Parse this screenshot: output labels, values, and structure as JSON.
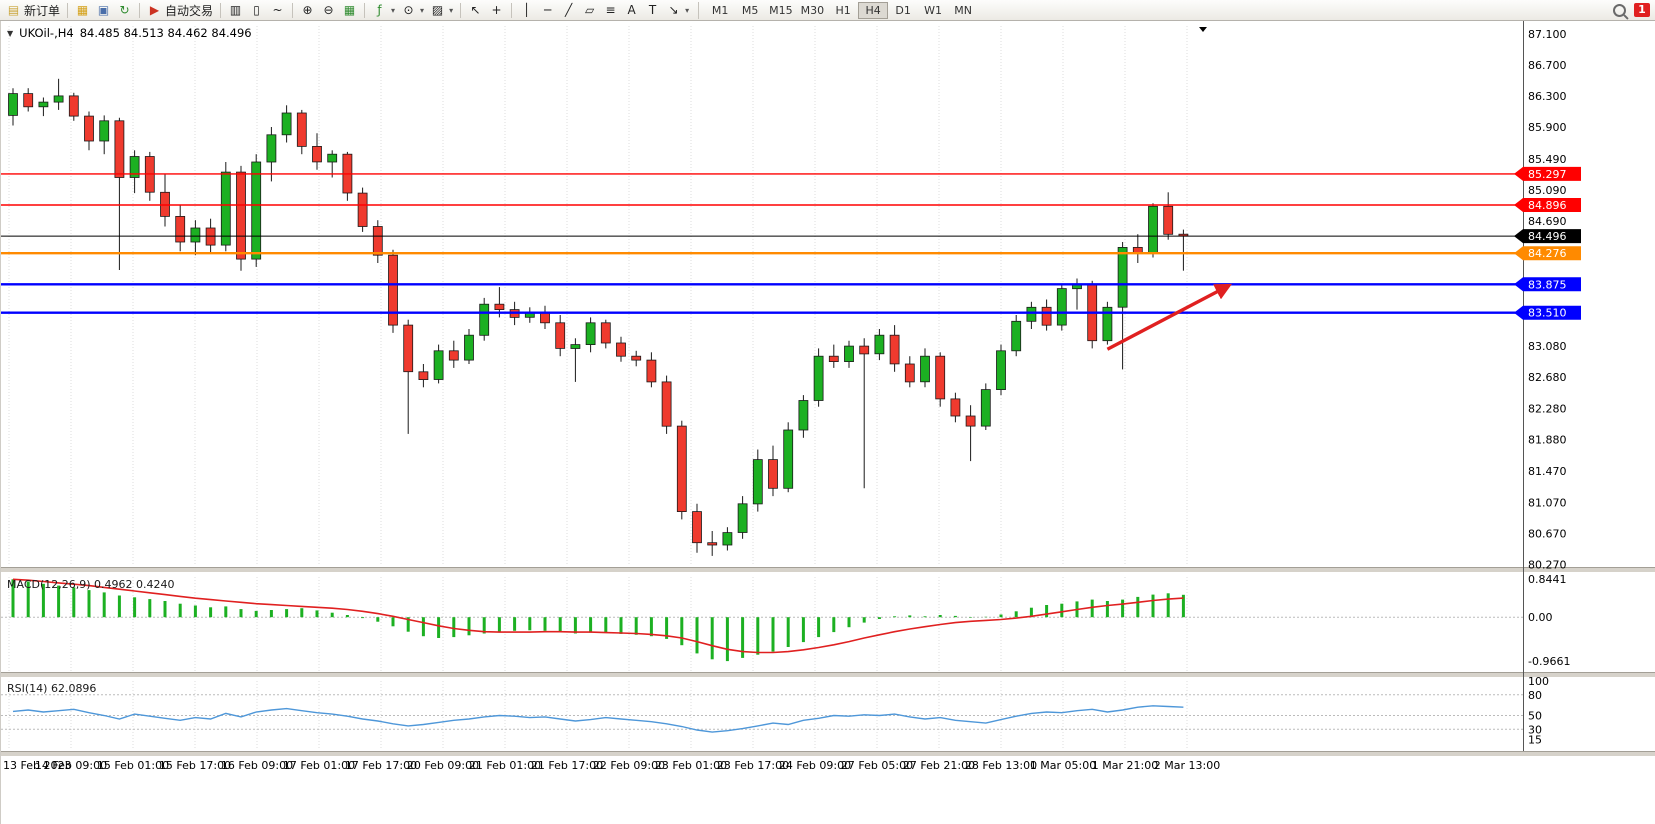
{
  "toolbar": {
    "badge_count": "1",
    "active_timeframe": "H4",
    "timeframes": [
      "M1",
      "M5",
      "M15",
      "M30",
      "H1",
      "H4",
      "D1",
      "W1",
      "MN"
    ],
    "groups": [
      [
        {
          "name": "new-order",
          "glyph": "▤",
          "color": "#caa53a",
          "label": "新订单"
        }
      ],
      [
        {
          "name": "charts-menu",
          "glyph": "▦",
          "color": "#d4a017"
        },
        {
          "name": "profiles",
          "glyph": "▣",
          "color": "#4a6ea9"
        },
        {
          "name": "refresh",
          "glyph": "↻",
          "color": "#2e8b2e"
        }
      ],
      [
        {
          "name": "autotrade",
          "glyph": "▶",
          "color": "#cc3322",
          "label": "自动交易"
        }
      ],
      [
        {
          "name": "bar-chart",
          "glyph": "▥"
        },
        {
          "name": "candlestick-chart",
          "glyph": "▯"
        },
        {
          "name": "line-chart",
          "glyph": "~"
        }
      ],
      [
        {
          "name": "zoom-in",
          "glyph": "⊕"
        },
        {
          "name": "zoom-out",
          "glyph": "⊖"
        },
        {
          "name": "tile-windows",
          "glyph": "▦",
          "color": "#2e8b2e"
        }
      ],
      [
        {
          "name": "indicators",
          "glyph": "ƒ",
          "color": "#2e8b2e",
          "dropdown": true
        },
        {
          "name": "periods",
          "glyph": "⊙",
          "dropdown": true
        },
        {
          "name": "templates",
          "glyph": "▨",
          "dropdown": true
        }
      ],
      [
        {
          "name": "cursor",
          "glyph": "↖"
        },
        {
          "name": "crosshair",
          "glyph": "+"
        }
      ],
      [
        {
          "name": "vertical-line",
          "glyph": "│"
        },
        {
          "name": "horizontal-line",
          "glyph": "─"
        },
        {
          "name": "trendline",
          "glyph": "╱"
        },
        {
          "name": "channel",
          "glyph": "▱"
        },
        {
          "name": "fibonacci",
          "glyph": "≡"
        },
        {
          "name": "text",
          "glyph": "A"
        },
        {
          "name": "text-label",
          "glyph": "T"
        },
        {
          "name": "arrows-tool",
          "glyph": "↘",
          "dropdown": true
        }
      ]
    ]
  },
  "icons": {
    "collapse": "▼",
    "dropdown": "▾"
  },
  "chart_header": {
    "symbol": "UKOil-,H4",
    "ohlc": "84.485 84.513 84.462 84.496"
  },
  "indicators": {
    "macd_label": "MACD(12,26,9) 0.4962 0.4240",
    "rsi_label": "RSI(14) 62.0896"
  },
  "chart_data": [
    {
      "type": "candlestick",
      "title": "UKOil- H4",
      "ylim": [
        80.25,
        87.2
      ],
      "grid": "vertical-dotted",
      "colors": {
        "bull": "#1CB022",
        "bear": "#EF3A2E",
        "wick": "#1a1a1a"
      },
      "y_ticks": [
        "87.100",
        "86.700",
        "86.300",
        "85.900",
        "85.490",
        "85.090",
        "84.690",
        "83.080",
        "82.680",
        "82.280",
        "81.880",
        "81.470",
        "81.070",
        "80.670",
        "80.270"
      ],
      "x_labels": [
        "13 Feb 2023",
        "14 Feb 09:00",
        "15 Feb 01:00",
        "15 Feb 17:00",
        "16 Feb 09:00",
        "17 Feb 01:00",
        "17 Feb 17:00",
        "20 Feb 09:00",
        "21 Feb 01:00",
        "21 Feb 17:00",
        "22 Feb 09:00",
        "23 Feb 01:00",
        "23 Feb 17:00",
        "24 Feb 09:00",
        "27 Feb 05:00",
        "27 Feb 21:00",
        "28 Feb 13:00",
        "1 Mar 05:00",
        "1 Mar 21:00",
        "2 Mar 13:00"
      ],
      "levels": [
        {
          "name": "resistance-line-1",
          "value": 85.297,
          "label": "85.297",
          "color": "#FF0000",
          "width": 1.4
        },
        {
          "name": "resistance-line-2",
          "value": 84.896,
          "label": "84.896",
          "color": "#FF0000",
          "width": 1.4
        },
        {
          "name": "current-price-line",
          "value": 84.496,
          "label": "84.496",
          "color": "#000000",
          "width": 1
        },
        {
          "name": "support-line-orange",
          "value": 84.276,
          "label": "84.276",
          "color": "#FF8A00",
          "width": 2.4
        },
        {
          "name": "support-line-blue-1",
          "value": 83.875,
          "label": "83.875",
          "color": "#0000FF",
          "width": 2.4
        },
        {
          "name": "support-line-blue-2",
          "value": 83.51,
          "label": "83.510",
          "color": "#0000FF",
          "width": 2.4
        }
      ],
      "annotations": [
        {
          "type": "arrow",
          "color": "#E02020",
          "from": {
            "index": 72,
            "price": 83.04
          },
          "to": {
            "index": 80,
            "price": 83.86
          }
        }
      ],
      "ohlc": [
        [
          86.05,
          86.4,
          85.92,
          86.33
        ],
        [
          86.33,
          86.4,
          86.1,
          86.16
        ],
        [
          86.16,
          86.28,
          86.04,
          86.22
        ],
        [
          86.22,
          86.52,
          86.12,
          86.3
        ],
        [
          86.3,
          86.34,
          85.98,
          86.04
        ],
        [
          86.04,
          86.1,
          85.6,
          85.72
        ],
        [
          85.72,
          86.05,
          85.55,
          85.98
        ],
        [
          85.98,
          86.02,
          84.06,
          85.25
        ],
        [
          85.25,
          85.6,
          85.05,
          85.52
        ],
        [
          85.52,
          85.58,
          84.95,
          85.06
        ],
        [
          85.06,
          85.3,
          84.62,
          84.75
        ],
        [
          84.75,
          84.9,
          84.3,
          84.42
        ],
        [
          84.42,
          84.7,
          84.25,
          84.6
        ],
        [
          84.6,
          84.72,
          84.28,
          84.38
        ],
        [
          84.38,
          85.45,
          84.3,
          85.32
        ],
        [
          85.32,
          85.4,
          84.05,
          84.2
        ],
        [
          84.2,
          85.55,
          84.1,
          85.45
        ],
        [
          85.45,
          85.9,
          85.2,
          85.8
        ],
        [
          85.8,
          86.18,
          85.7,
          86.08
        ],
        [
          86.08,
          86.12,
          85.55,
          85.65
        ],
        [
          85.65,
          85.82,
          85.35,
          85.45
        ],
        [
          85.45,
          85.6,
          85.25,
          85.55
        ],
        [
          85.55,
          85.58,
          84.95,
          85.05
        ],
        [
          85.05,
          85.12,
          84.55,
          84.62
        ],
        [
          84.62,
          84.7,
          84.15,
          84.25
        ],
        [
          84.25,
          84.32,
          83.25,
          83.35
        ],
        [
          83.35,
          83.42,
          81.95,
          82.75
        ],
        [
          82.75,
          82.85,
          82.55,
          82.65
        ],
        [
          82.65,
          83.1,
          82.6,
          83.02
        ],
        [
          83.02,
          83.15,
          82.8,
          82.9
        ],
        [
          82.9,
          83.3,
          82.85,
          83.22
        ],
        [
          83.22,
          83.7,
          83.15,
          83.62
        ],
        [
          83.62,
          83.84,
          83.45,
          83.55
        ],
        [
          83.55,
          83.65,
          83.35,
          83.45
        ],
        [
          83.45,
          83.58,
          83.38,
          83.52
        ],
        [
          83.52,
          83.6,
          83.3,
          83.38
        ],
        [
          83.38,
          83.48,
          82.95,
          83.05
        ],
        [
          83.05,
          83.18,
          82.62,
          83.1
        ],
        [
          83.1,
          83.45,
          83.0,
          83.38
        ],
        [
          83.38,
          83.42,
          83.05,
          83.12
        ],
        [
          83.12,
          83.2,
          82.88,
          82.95
        ],
        [
          82.95,
          83.02,
          82.82,
          82.9
        ],
        [
          82.9,
          83.0,
          82.55,
          82.62
        ],
        [
          82.62,
          82.7,
          81.95,
          82.05
        ],
        [
          82.05,
          82.12,
          80.85,
          80.95
        ],
        [
          80.95,
          81.05,
          80.42,
          80.55
        ],
        [
          80.55,
          80.7,
          80.38,
          80.52
        ],
        [
          80.52,
          80.75,
          80.45,
          80.68
        ],
        [
          80.68,
          81.15,
          80.6,
          81.05
        ],
        [
          81.05,
          81.75,
          80.95,
          81.62
        ],
        [
          81.62,
          81.8,
          81.15,
          81.25
        ],
        [
          81.25,
          82.1,
          81.2,
          82.0
        ],
        [
          82.0,
          82.45,
          81.9,
          82.38
        ],
        [
          82.38,
          83.05,
          82.3,
          82.95
        ],
        [
          82.95,
          83.1,
          82.8,
          82.88
        ],
        [
          82.88,
          83.15,
          82.8,
          83.08
        ],
        [
          83.08,
          83.18,
          81.25,
          82.98
        ],
        [
          82.98,
          83.3,
          82.9,
          83.22
        ],
        [
          83.22,
          83.35,
          82.75,
          82.85
        ],
        [
          82.85,
          82.95,
          82.55,
          82.62
        ],
        [
          82.62,
          83.05,
          82.55,
          82.95
        ],
        [
          82.95,
          83.0,
          82.3,
          82.4
        ],
        [
          82.4,
          82.48,
          82.1,
          82.18
        ],
        [
          82.18,
          82.32,
          81.6,
          82.05
        ],
        [
          82.05,
          82.6,
          82.0,
          82.52
        ],
        [
          82.52,
          83.1,
          82.45,
          83.02
        ],
        [
          83.02,
          83.48,
          82.95,
          83.4
        ],
        [
          83.4,
          83.65,
          83.3,
          83.58
        ],
        [
          83.58,
          83.68,
          83.28,
          83.35
        ],
        [
          83.35,
          83.88,
          83.28,
          83.82
        ],
        [
          83.82,
          83.95,
          83.55,
          83.88
        ],
        [
          83.88,
          83.92,
          83.05,
          83.15
        ],
        [
          83.15,
          83.65,
          83.1,
          83.58
        ],
        [
          83.58,
          84.42,
          82.78,
          84.35
        ],
        [
          84.35,
          84.52,
          84.15,
          84.28
        ],
        [
          84.28,
          84.92,
          84.22,
          84.88
        ],
        [
          84.88,
          85.06,
          84.45,
          84.52
        ],
        [
          84.52,
          84.58,
          84.05,
          84.496
        ]
      ]
    },
    {
      "type": "bar",
      "name": "MACD(12,26,9)",
      "ylim": [
        -1.19,
        0.89
      ],
      "y_ticks": [
        "0.8441",
        "0.00",
        "-0.9661"
      ],
      "colors": {
        "histogram": "#1CB022",
        "signal": "#E02020"
      },
      "values": [
        0.84,
        0.79,
        0.74,
        0.7,
        0.66,
        0.6,
        0.55,
        0.48,
        0.44,
        0.4,
        0.36,
        0.3,
        0.26,
        0.22,
        0.24,
        0.18,
        0.14,
        0.16,
        0.18,
        0.2,
        0.15,
        0.1,
        0.05,
        -0.02,
        -0.1,
        -0.2,
        -0.32,
        -0.42,
        -0.46,
        -0.44,
        -0.4,
        -0.36,
        -0.32,
        -0.3,
        -0.29,
        -0.3,
        -0.33,
        -0.36,
        -0.34,
        -0.35,
        -0.37,
        -0.39,
        -0.42,
        -0.48,
        -0.62,
        -0.8,
        -0.93,
        -0.97,
        -0.9,
        -0.83,
        -0.76,
        -0.66,
        -0.55,
        -0.44,
        -0.33,
        -0.22,
        -0.12,
        -0.04,
        0.02,
        0.04,
        0.02,
        0.05,
        0.03,
        -0.01,
        0.01,
        0.06,
        0.13,
        0.21,
        0.27,
        0.3,
        0.35,
        0.39,
        0.36,
        0.39,
        0.45,
        0.5,
        0.53,
        0.4962
      ],
      "signal": [
        0.84,
        0.82,
        0.79,
        0.76,
        0.73,
        0.7,
        0.66,
        0.62,
        0.58,
        0.54,
        0.5,
        0.46,
        0.42,
        0.39,
        0.36,
        0.33,
        0.3,
        0.28,
        0.26,
        0.24,
        0.22,
        0.2,
        0.17,
        0.13,
        0.08,
        0.02,
        -0.05,
        -0.12,
        -0.19,
        -0.25,
        -0.29,
        -0.32,
        -0.33,
        -0.33,
        -0.33,
        -0.32,
        -0.32,
        -0.33,
        -0.33,
        -0.34,
        -0.35,
        -0.36,
        -0.38,
        -0.41,
        -0.46,
        -0.54,
        -0.63,
        -0.71,
        -0.76,
        -0.78,
        -0.78,
        -0.76,
        -0.72,
        -0.67,
        -0.61,
        -0.54,
        -0.46,
        -0.39,
        -0.32,
        -0.26,
        -0.21,
        -0.16,
        -0.12,
        -0.09,
        -0.07,
        -0.05,
        -0.02,
        0.02,
        0.07,
        0.12,
        0.17,
        0.22,
        0.26,
        0.29,
        0.33,
        0.37,
        0.4,
        0.424
      ]
    },
    {
      "type": "line",
      "name": "RSI(14)",
      "ylim": [
        0,
        100
      ],
      "y_ticks": [
        "100",
        "80",
        "50",
        "30",
        "15"
      ],
      "guides": [
        80,
        50,
        30
      ],
      "color": "#4E97D9",
      "values": [
        56,
        58,
        55,
        57,
        59,
        54,
        50,
        45,
        52,
        49,
        46,
        43,
        47,
        45,
        53,
        48,
        55,
        58,
        60,
        57,
        54,
        52,
        49,
        45,
        42,
        38,
        35,
        37,
        40,
        43,
        45,
        48,
        50,
        49,
        47,
        48,
        45,
        42,
        44,
        47,
        45,
        43,
        41,
        38,
        34,
        29,
        26,
        28,
        31,
        35,
        39,
        37,
        43,
        46,
        50,
        49,
        51,
        50,
        52,
        48,
        45,
        47,
        43,
        41,
        39,
        44,
        49,
        53,
        55,
        54,
        57,
        59,
        55,
        58,
        62,
        64,
        63,
        62.0896
      ]
    }
  ]
}
